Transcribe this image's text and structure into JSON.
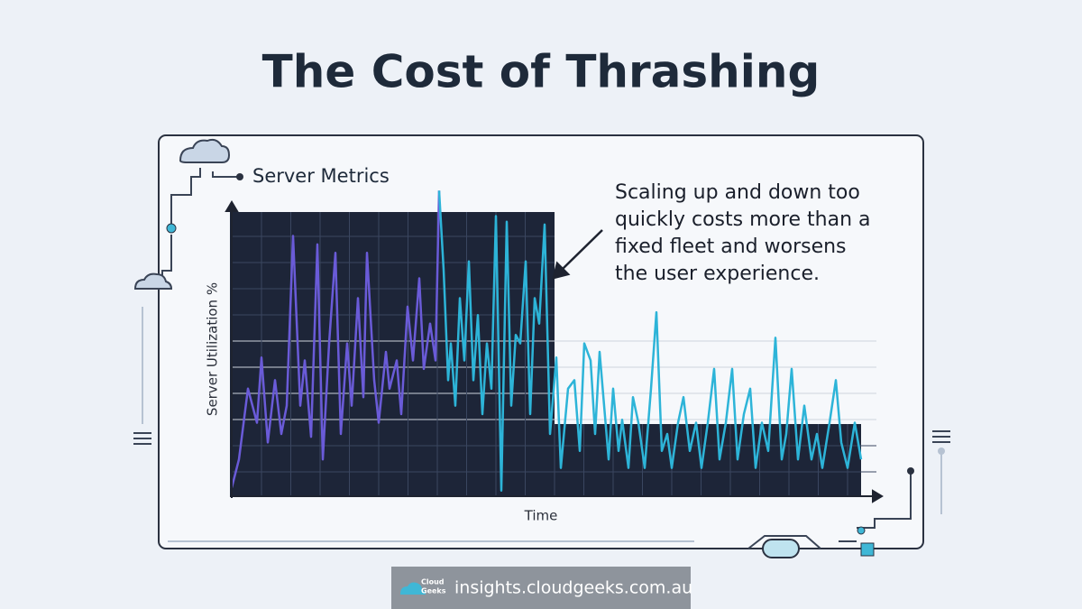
{
  "chart_data": {
    "type": "line",
    "title": "The Cost of Thrashing",
    "subtitle": "Server Metrics",
    "annotation": [
      "Scaling up and down too",
      "quickly costs more than a",
      "fixed fleet and worsens",
      "the user experience."
    ],
    "ylabel": "Server Utilization %",
    "xlabel": "Time",
    "xlim": [
      0,
      700
    ],
    "ylim": [
      0,
      110
    ],
    "grid": true,
    "series": [
      {
        "color": "#6a5bd8",
        "x": [
          0,
          8,
          18,
          28,
          33,
          40,
          48,
          55,
          61,
          68,
          76,
          81,
          88,
          95,
          101,
          108,
          115,
          121,
          128,
          133,
          140,
          146,
          150,
          158,
          163,
          171,
          175,
          183,
          188,
          195,
          201,
          208,
          213,
          220,
          226,
          230
        ],
        "values": [
          3,
          13,
          38,
          26,
          49,
          19,
          41,
          22,
          32,
          92,
          32,
          48,
          21,
          89,
          13,
          54,
          86,
          22,
          54,
          32,
          70,
          35,
          86,
          41,
          26,
          51,
          38,
          48,
          29,
          67,
          48,
          77,
          45,
          61,
          48,
          108
        ]
      },
      {
        "color": "#2db4d8",
        "x": [
          230,
          235,
          240,
          243,
          248,
          253,
          258,
          263,
          268,
          273,
          278,
          283,
          288,
          293,
          299,
          305,
          310,
          315,
          320,
          326,
          331,
          336,
          341,
          347,
          353,
          360,
          365,
          373,
          380,
          386,
          391,
          398,
          403,
          408,
          413,
          418,
          423,
          429,
          433,
          440,
          445,
          451,
          458,
          465,
          471,
          477,
          483,
          488,
          495,
          501,
          508,
          515,
          521,
          528,
          535,
          541,
          548,
          555,
          561,
          568,
          575,
          581,
          588,
          595,
          603,
          610,
          615,
          621,
          628,
          635,
          643,
          649,
          655,
          663,
          670,
          676,
          683,
          691,
          698
        ],
        "values": [
          108,
          80,
          41,
          54,
          32,
          70,
          48,
          83,
          41,
          64,
          29,
          54,
          38,
          99,
          2,
          97,
          32,
          57,
          54,
          83,
          29,
          70,
          61,
          96,
          22,
          49,
          10,
          38,
          41,
          16,
          54,
          48,
          22,
          51,
          32,
          13,
          38,
          16,
          27,
          10,
          35,
          26,
          10,
          38,
          65,
          16,
          22,
          10,
          26,
          35,
          16,
          26,
          10,
          26,
          45,
          13,
          26,
          45,
          13,
          29,
          38,
          10,
          26,
          16,
          56,
          13,
          22,
          45,
          13,
          32,
          13,
          22,
          10,
          26,
          41,
          19,
          10,
          26,
          13
        ]
      }
    ]
  },
  "footer": {
    "brand": [
      "Cloud",
      "Geeks"
    ],
    "url": "insights.cloudgeeks.com.au"
  }
}
